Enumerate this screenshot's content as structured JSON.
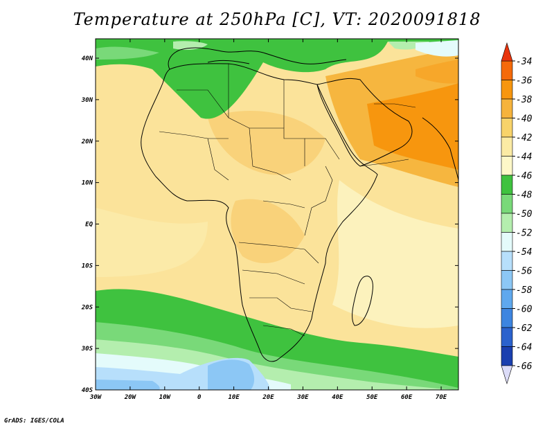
{
  "title": "Temperature at 250hPa [C], VT: 2020091818",
  "credit": "GrADS: IGES/COLA",
  "map": {
    "lon_range": [
      -30,
      75
    ],
    "lat_range": [
      -40,
      45
    ],
    "lon_ticks": [
      "30W",
      "20W",
      "10W",
      "0",
      "10E",
      "20E",
      "30E",
      "40E",
      "50E",
      "60E",
      "70E"
    ],
    "lat_ticks": [
      "40N",
      "30N",
      "20N",
      "10N",
      "EQ",
      "10S",
      "20S",
      "30S",
      "40S"
    ]
  },
  "colorbar": {
    "labels": [
      "-34",
      "-36",
      "-38",
      "-40",
      "-42",
      "-44",
      "-46",
      "-48",
      "-50",
      "-52",
      "-54",
      "-56",
      "-58",
      "-60",
      "-62",
      "-64",
      "-66"
    ],
    "colors": [
      "#e8340c",
      "#f56a0a",
      "#f7960e",
      "#f6b33c",
      "#f8d36a",
      "#fbeba4",
      "#fdf8c8",
      "#3fc23f",
      "#79d979",
      "#b4eeae",
      "#e4fbfb",
      "#b7dffb",
      "#8cc7f5",
      "#5fa8ee",
      "#3d85e0",
      "#2b62cd",
      "#1a3faf",
      "#0d1f7a"
    ],
    "top_arrow_color": "#e8340c",
    "bottom_arrow_color": "#dcdcf8"
  }
}
